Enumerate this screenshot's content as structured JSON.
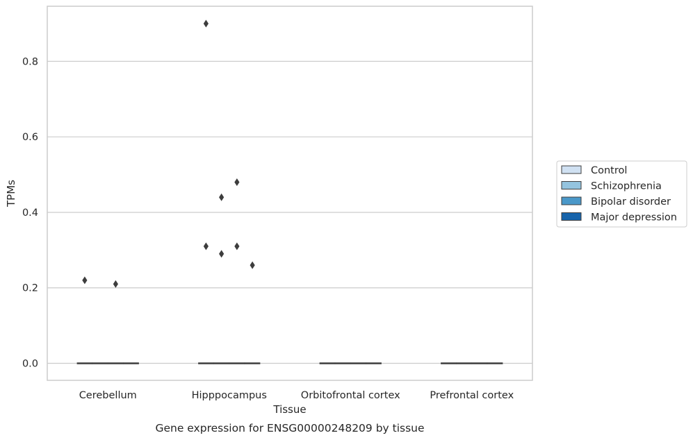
{
  "chart_data": {
    "type": "boxplot",
    "title": "",
    "caption": "Gene expression for ENSG00000248209 by tissue",
    "xlabel": "Tissue",
    "ylabel": "TPMs",
    "ylim": [
      -0.045,
      0.946
    ],
    "yticks": [
      0.0,
      0.2,
      0.4,
      0.6,
      0.8
    ],
    "ytick_labels": [
      "0.0",
      "0.2",
      "0.4",
      "0.6",
      "0.8"
    ],
    "grid": "horizontal",
    "categories": [
      "Cerebellum",
      "Hipppocampus",
      "Orbitofrontal cortex",
      "Prefrontal cortex"
    ],
    "legend_position": "right",
    "series": [
      {
        "name": "Control",
        "color": "#d0e1f2",
        "medians": [
          0,
          0,
          0,
          0
        ],
        "outliers": [
          [
            0.22
          ],
          [
            0.9,
            0.31
          ],
          [],
          []
        ]
      },
      {
        "name": "Schizophrenia",
        "color": "#94c4df",
        "medians": [
          0,
          0,
          0,
          0
        ],
        "outliers": [
          [],
          [
            0.44,
            0.29
          ],
          [],
          []
        ]
      },
      {
        "name": "Bipolar disorder",
        "color": "#4a98c9",
        "medians": [
          0,
          0,
          0,
          0
        ],
        "outliers": [
          [
            0.21
          ],
          [
            0.48,
            0.31
          ],
          [],
          []
        ]
      },
      {
        "name": "Major depression",
        "color": "#1764ab",
        "medians": [
          0,
          0,
          0,
          0
        ],
        "outliers": [
          [],
          [
            0.26
          ],
          [],
          []
        ]
      }
    ]
  }
}
